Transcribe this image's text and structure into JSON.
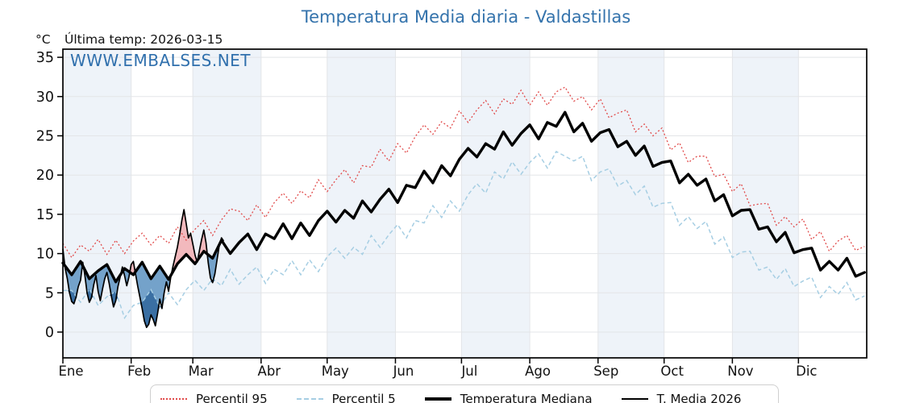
{
  "header": {
    "title": "Temperatura Media diaria - Valdastillas",
    "unit_label": "°C",
    "last_temp_label": "Última temp: 2026-03-15",
    "watermark": "WWW.EMBALSES.NET"
  },
  "colors": {
    "title_blue": "#3473ac",
    "watermark_blue": "#3070ad",
    "p95_red": "#e14b4b",
    "p5_lightblue": "#a6cee3",
    "median_black": "#000000",
    "t2026_black": "#000000",
    "fill_above_median_pink": "#f2b9bd",
    "fill_below_median_blue": "#74a2ca",
    "fill_below_p5_darkblue": "#3a6fa3",
    "month_band": "#eef3f9",
    "grid_line": "#e3e5e8",
    "axis_black": "#000000",
    "legend_border": "#cfcfcf"
  },
  "legend": {
    "items": [
      {
        "label": "Percentil 95",
        "sample": "dotted-red"
      },
      {
        "label": "Percentil 5",
        "sample": "dashed-blue"
      },
      {
        "label": "Temperatura Mediana",
        "sample": "thick-black"
      },
      {
        "label": "T. Media 2026",
        "sample": "thin-black"
      }
    ]
  },
  "chart_data": {
    "type": "line",
    "title": "Temperatura Media diaria - Valdastillas",
    "xlabel": "",
    "ylabel": "°C",
    "yticks": [
      0,
      5,
      10,
      15,
      20,
      25,
      30,
      35
    ],
    "ylim": [
      -3.3,
      36.1
    ],
    "days_in_year": 365,
    "month_labels": [
      "Ene",
      "Feb",
      "Mar",
      "Abr",
      "May",
      "Jun",
      "Jul",
      "Ago",
      "Sep",
      "Oct",
      "Nov",
      "Dic"
    ],
    "month_start_days": [
      0,
      31,
      59,
      90,
      120,
      151,
      181,
      212,
      243,
      273,
      304,
      334,
      365
    ],
    "shaded_month_indices": [
      0,
      2,
      4,
      6,
      8,
      10
    ],
    "grid": true,
    "legend_position": "bottom",
    "series": [
      {
        "name": "Percentil 95",
        "style": "dotted",
        "day_step": 4,
        "values": [
          11.3,
          9.5,
          11.1,
          10.3,
          11.8,
          9.9,
          11.7,
          10.0,
          11.6,
          12.6,
          11.1,
          12.3,
          11.3,
          13.4,
          11.7,
          13.1,
          14.2,
          12.3,
          14.3,
          15.7,
          15.4,
          14.2,
          16.2,
          14.6,
          16.5,
          17.7,
          16.4,
          18.0,
          17.1,
          19.4,
          17.9,
          19.4,
          20.7,
          19.0,
          21.2,
          21.0,
          23.3,
          21.8,
          24.0,
          22.8,
          24.9,
          26.4,
          25.2,
          26.8,
          26.0,
          28.2,
          26.7,
          28.3,
          29.5,
          27.8,
          29.7,
          29.0,
          30.8,
          28.9,
          30.6,
          28.9,
          30.6,
          31.2,
          29.4,
          30.0,
          28.3,
          29.7,
          27.3,
          27.9,
          28.3,
          25.5,
          26.5,
          25.0,
          26.0,
          23.2,
          24.1,
          21.6,
          22.4,
          22.4,
          19.8,
          20.1,
          17.9,
          18.9,
          16.1,
          16.3,
          16.4,
          13.6,
          14.7,
          13.4,
          14.4,
          11.8,
          12.8,
          10.3,
          11.6,
          12.3,
          10.4,
          10.9
        ]
      },
      {
        "name": "Percentil 5",
        "style": "dashed",
        "day_step": 4,
        "values": [
          5.3,
          5.3,
          3.8,
          5.5,
          3.4,
          4.5,
          5.2,
          1.8,
          3.4,
          3.8,
          5.4,
          3.2,
          5.0,
          3.5,
          5.4,
          6.6,
          5.3,
          6.8,
          5.9,
          8.0,
          6.1,
          7.3,
          8.3,
          6.2,
          8.0,
          7.3,
          9.1,
          7.3,
          9.2,
          7.7,
          9.6,
          10.7,
          9.4,
          10.8,
          9.9,
          12.3,
          10.8,
          12.4,
          13.7,
          12.0,
          14.2,
          13.9,
          16.1,
          14.6,
          16.7,
          15.4,
          17.5,
          18.9,
          17.7,
          20.4,
          19.5,
          21.7,
          20.1,
          21.6,
          22.7,
          20.9,
          23.0,
          22.4,
          21.8,
          22.4,
          19.3,
          20.4,
          20.8,
          18.6,
          19.3,
          17.5,
          18.6,
          15.9,
          16.4,
          16.5,
          13.6,
          14.7,
          13.2,
          14.1,
          11.2,
          12.1,
          9.5,
          10.2,
          10.3,
          7.9,
          8.3,
          6.7,
          8.1,
          5.8,
          6.5,
          7.0,
          4.4,
          5.8,
          4.8,
          6.3,
          4.1,
          4.6
        ]
      },
      {
        "name": "Temperatura Mediana",
        "style": "solid-thick",
        "day_step": 4,
        "values": [
          8.8,
          7.3,
          9.0,
          6.8,
          7.8,
          8.6,
          6.4,
          8.1,
          7.3,
          8.9,
          6.8,
          8.4,
          6.7,
          8.7,
          9.9,
          8.7,
          10.3,
          9.4,
          11.7,
          10.0,
          11.4,
          12.5,
          10.5,
          12.5,
          11.9,
          13.8,
          11.9,
          13.9,
          12.3,
          14.2,
          15.4,
          14.0,
          15.5,
          14.5,
          16.7,
          15.3,
          16.9,
          18.2,
          16.5,
          18.7,
          18.4,
          20.5,
          19.0,
          21.2,
          19.9,
          22.0,
          23.4,
          22.3,
          24.0,
          23.3,
          25.5,
          23.8,
          25.3,
          26.4,
          24.6,
          26.7,
          26.2,
          28.0,
          25.5,
          26.6,
          24.3,
          25.4,
          25.8,
          23.6,
          24.3,
          22.5,
          23.7,
          21.1,
          21.6,
          21.8,
          19.0,
          20.1,
          18.7,
          19.5,
          16.7,
          17.5,
          14.8,
          15.5,
          15.6,
          13.1,
          13.4,
          11.5,
          12.7,
          10.1,
          10.5,
          10.7,
          7.9,
          9.0,
          7.9,
          9.4,
          7.1,
          7.6
        ]
      },
      {
        "name": "T. Media 2026",
        "style": "solid-thin",
        "day_step": 1,
        "start_day": 0,
        "last_date": "2026-03-15",
        "values": [
          10.6,
          8.2,
          6.8,
          5.0,
          3.9,
          3.6,
          4.5,
          5.8,
          6.6,
          8.9,
          7.2,
          5.0,
          3.8,
          4.4,
          6.0,
          7.2,
          5.2,
          4.0,
          5.5,
          6.8,
          7.6,
          6.2,
          4.6,
          3.2,
          4.0,
          5.8,
          7.0,
          8.3,
          7.2,
          5.9,
          7.0,
          8.6,
          9.0,
          7.4,
          5.8,
          4.4,
          3.0,
          1.4,
          0.6,
          1.0,
          2.2,
          1.6,
          0.8,
          2.4,
          4.2,
          3.0,
          5.0,
          6.4,
          5.2,
          7.0,
          8.4,
          9.6,
          10.8,
          12.4,
          14.2,
          15.6,
          13.8,
          12.0,
          12.6,
          11.2,
          9.8,
          8.9,
          10.4,
          11.8,
          13.0,
          11.4,
          8.8,
          6.9,
          6.3,
          7.4,
          9.2,
          11.0,
          12.0,
          11.6
        ]
      }
    ]
  }
}
